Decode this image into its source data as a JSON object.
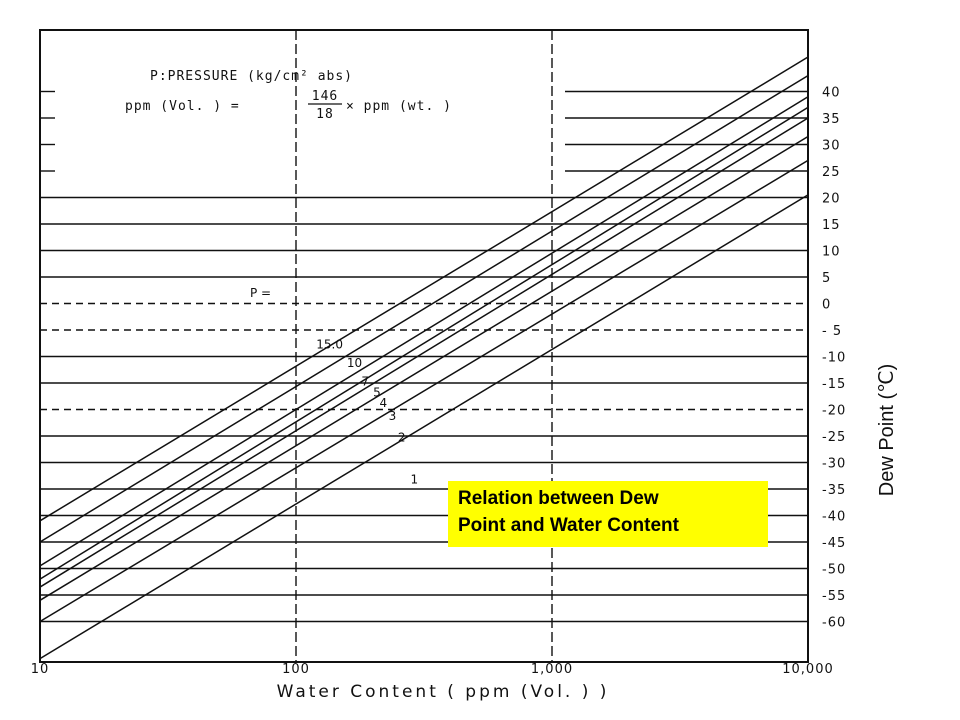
{
  "chart_data": {
    "type": "line",
    "title": "",
    "xlabel": "Water Content ( ppm (Vol. ) )",
    "ylabel": "Dew Point (℃)",
    "x_scale": "log",
    "xlim": [
      10,
      10000
    ],
    "x_ticks": [
      10,
      100,
      1000,
      10000
    ],
    "x_tick_labels": [
      "10",
      "100",
      "1,000",
      "10,000"
    ],
    "ylim": [
      -65,
      45
    ],
    "y_ticks": [
      40,
      35,
      30,
      25,
      20,
      15,
      10,
      5,
      0,
      -5,
      -10,
      -15,
      -20,
      -25,
      -30,
      -35,
      -40,
      -45,
      -50,
      -55,
      -60
    ],
    "y_tick_labels": [
      "40",
      "35",
      "30",
      "25",
      "20",
      "15",
      "10",
      "5",
      "0",
      "- 5",
      "-10",
      "-15",
      "-20",
      "-25",
      "-30",
      "-35",
      "-40",
      "-45",
      "-50",
      "-55",
      "-60"
    ],
    "dashed_y_values": [
      0,
      -5,
      -20
    ],
    "grid": true,
    "notes": {
      "line1": "P:PRESSURE (kg/cm² abs)",
      "line2_left": "ppm (Vol. ) =",
      "fraction_num": "146",
      "fraction_den": "18",
      "line2_right": "× ppm (wt. )"
    },
    "pressure_prefix": "P =",
    "series": [
      {
        "name": "15.0",
        "x": [
          10,
          10000
        ],
        "y": [
          -41,
          46.5
        ]
      },
      {
        "name": "10",
        "x": [
          10,
          10000
        ],
        "y": [
          -45,
          43
        ]
      },
      {
        "name": "7",
        "x": [
          10,
          10000
        ],
        "y": [
          -49.5,
          39
        ]
      },
      {
        "name": "5",
        "x": [
          10,
          10000
        ],
        "y": [
          -52,
          37
        ]
      },
      {
        "name": "4",
        "x": [
          10,
          10000
        ],
        "y": [
          -53.5,
          35
        ]
      },
      {
        "name": "3",
        "x": [
          10,
          10000
        ],
        "y": [
          -56,
          31.5
        ]
      },
      {
        "name": "2",
        "x": [
          10,
          10000
        ],
        "y": [
          -60,
          27
        ]
      },
      {
        "name": "1",
        "x": [
          10,
          10000
        ],
        "y": [
          -67,
          20.5
        ]
      }
    ],
    "series_label_points": [
      {
        "name": "15.0",
        "x": 120,
        "y": -8.5
      },
      {
        "name": "10",
        "x": 158,
        "y": -12
      },
      {
        "name": "7",
        "x": 180,
        "y": -15.5
      },
      {
        "name": "5",
        "x": 200,
        "y": -17.5
      },
      {
        "name": "4",
        "x": 212,
        "y": -19.5
      },
      {
        "name": "3",
        "x": 230,
        "y": -22
      },
      {
        "name": "2",
        "x": 250,
        "y": -26
      },
      {
        "name": "1",
        "x": 280,
        "y": -34
      }
    ]
  },
  "caption": {
    "line1": "Relation between Dew",
    "line2": "Point and Water Content"
  },
  "colors": {
    "ink": "#111111",
    "caption_bg": "#ffff00"
  }
}
